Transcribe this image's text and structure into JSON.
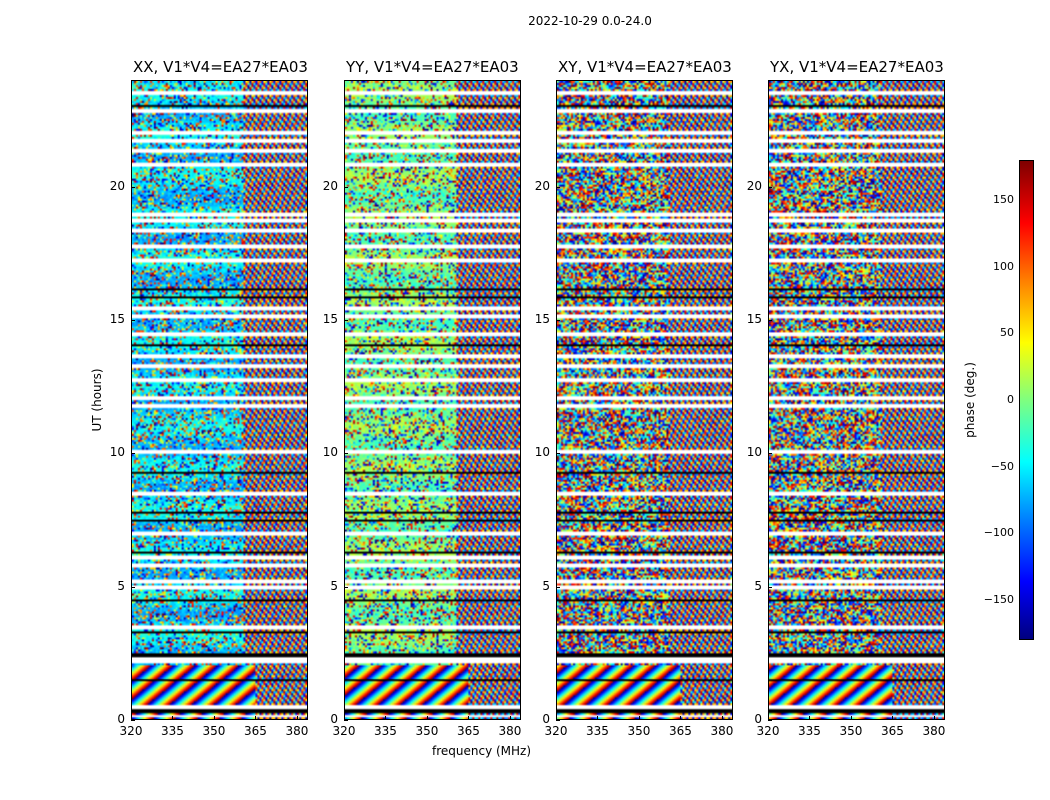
{
  "chart_data": {
    "type": "heatmap",
    "title": "2022-10-29 0.0-24.0",
    "panels": [
      {
        "title": "XX, V1*V4=EA27*EA03"
      },
      {
        "title": "YY, V1*V4=EA27*EA03"
      },
      {
        "title": "XY, V1*V4=EA27*EA03"
      },
      {
        "title": "YX, V1*V4=EA27*EA03"
      }
    ],
    "xlabel": "frequency (MHz)",
    "ylabel": "UT (hours)",
    "xlim": [
      320,
      384
    ],
    "ylim": [
      0,
      24
    ],
    "xticks": [
      "320",
      "335",
      "350",
      "365",
      "380"
    ],
    "xtick_values": [
      320,
      335,
      350,
      365,
      380
    ],
    "yticks": [
      "0",
      "5",
      "10",
      "15",
      "20"
    ],
    "ytick_values": [
      0,
      5,
      10,
      15,
      20
    ],
    "colorbar": {
      "label": "phase (deg.)",
      "range": [
        -180,
        180
      ],
      "ticks": [
        "−150",
        "−100",
        "−50",
        "0",
        "50",
        "100",
        "150"
      ],
      "tick_values": [
        -150,
        -100,
        -50,
        0,
        50,
        100,
        150
      ],
      "colormap": "jet"
    }
  }
}
